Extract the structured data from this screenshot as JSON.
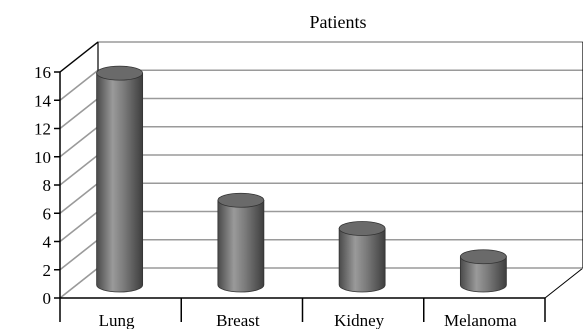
{
  "chart_data": {
    "type": "bar",
    "style": "3d-cylinder",
    "title": "Patients",
    "xlabel": "",
    "ylabel": "",
    "categories": [
      "Lung",
      "Breast",
      "Kidney",
      "Melanoma"
    ],
    "values": [
      15,
      6,
      4,
      2
    ],
    "ylim": [
      0,
      16
    ],
    "yticks": [
      "0",
      "2",
      "4",
      "6",
      "8",
      "10",
      "12",
      "14",
      "16"
    ],
    "grid": true,
    "legend": "none",
    "colors": {
      "bar": "#7a7a7a",
      "bar_dark": "#4a4a4a",
      "bar_light": "#a8a8a8",
      "grid": "#9a9a9a",
      "axis": "#000000"
    }
  }
}
